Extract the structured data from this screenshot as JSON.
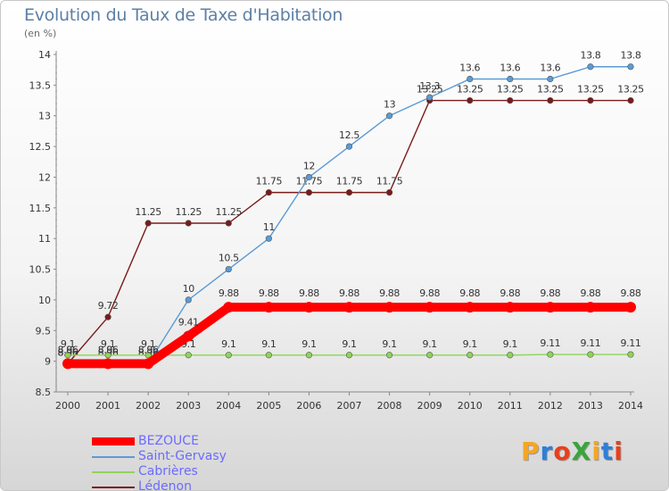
{
  "header": {
    "title": "Evolution du Taux de Taxe d'Habitation",
    "subtitle": "(en %)"
  },
  "logo": {
    "text": "ProXiti",
    "colors": [
      "#f5a623",
      "#2f7fd8",
      "#e8401c",
      "#3aa53a",
      "#f5a623",
      "#2f7fd8",
      "#e8401c"
    ]
  },
  "chart_data": {
    "type": "line",
    "x": [
      "2000",
      "2001",
      "2002",
      "2003",
      "2004",
      "2005",
      "2006",
      "2007",
      "2008",
      "2009",
      "2010",
      "2011",
      "2012",
      "2013",
      "2014"
    ],
    "ylim": [
      8.5,
      14
    ],
    "yticks": [
      "8.5",
      "9",
      "9.5",
      "10",
      "10.5",
      "11",
      "11.5",
      "12",
      "12.5",
      "13",
      "13.5",
      "14"
    ],
    "grid": false,
    "legend_position": "bottom-left",
    "series": [
      {
        "name": "Lédenon",
        "color": "#7b1a1a",
        "values": [
          8.96,
          9.72,
          11.25,
          11.25,
          11.25,
          11.75,
          11.75,
          11.75,
          11.75,
          13.25,
          13.25,
          13.25,
          13.25,
          13.25,
          13.25
        ],
        "labels": [
          "8.96",
          "9.72",
          "11.25",
          "11.25",
          "11.25",
          "11.75",
          "11.75",
          "11.75",
          "11.75",
          "13.25",
          "13.25",
          "13.25",
          "13.25",
          "13.25",
          "13.25"
        ]
      },
      {
        "name": "Saint-Gervasy",
        "color": "#5b9bd5",
        "values": [
          8.96,
          8.96,
          8.96,
          10,
          10.5,
          11,
          12,
          12.5,
          13,
          13.3,
          13.6,
          13.6,
          13.6,
          13.8,
          13.8
        ],
        "labels": [
          "8.96",
          "8.96",
          "8.96",
          "10",
          "10.5",
          "11",
          "12",
          "12.5",
          "13",
          "13.3",
          "13.6",
          "13.6",
          "13.6",
          "13.8",
          "13.8"
        ]
      },
      {
        "name": "Cabrières",
        "color": "#8fd45a",
        "values": [
          9.1,
          9.1,
          9.1,
          9.1,
          9.1,
          9.1,
          9.1,
          9.1,
          9.1,
          9.1,
          9.1,
          9.1,
          9.11,
          9.11,
          9.11
        ],
        "labels": [
          "9.1",
          "9.1",
          "9.1",
          "9.1",
          "9.1",
          "9.1",
          "9.1",
          "9.1",
          "9.1",
          "9.1",
          "9.1",
          "9.1",
          "9.11",
          "9.11",
          "9.11"
        ]
      },
      {
        "name": "BEZOUCE",
        "color": "#ff0000",
        "values": [
          8.96,
          8.96,
          8.96,
          9.41,
          9.88,
          9.88,
          9.88,
          9.88,
          9.88,
          9.88,
          9.88,
          9.88,
          9.88,
          9.88,
          9.88
        ],
        "labels": [
          "8.96",
          "8.96",
          "8.96",
          "9.41",
          "9.88",
          "9.88",
          "9.88",
          "9.88",
          "9.88",
          "9.88",
          "9.88",
          "9.88",
          "9.88",
          "9.88",
          "9.88"
        ]
      }
    ]
  },
  "legend": [
    {
      "name": "BEZOUCE",
      "color": "#ff0000"
    },
    {
      "name": "Saint-Gervasy",
      "color": "#5b9bd5"
    },
    {
      "name": "Cabrières",
      "color": "#8fd45a"
    },
    {
      "name": "Lédenon",
      "color": "#7b1a1a"
    }
  ]
}
